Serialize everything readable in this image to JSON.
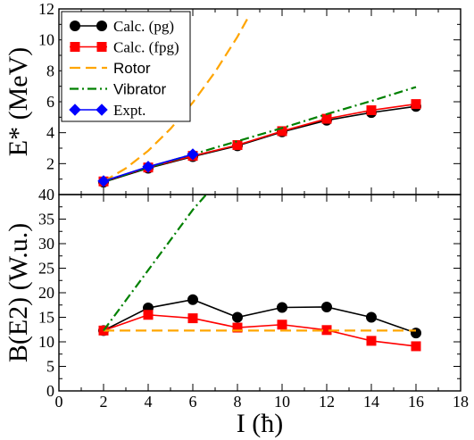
{
  "chart_data": [
    {
      "type": "line",
      "panel": "top",
      "ylabel": "E* (MeV)",
      "xlim": [
        0,
        18
      ],
      "ylim": [
        0,
        12
      ],
      "xticks": [
        0,
        2,
        4,
        6,
        8,
        10,
        12,
        14,
        16,
        18
      ],
      "yticks": [
        2,
        4,
        6,
        8,
        10,
        12
      ],
      "ytick_labels": [
        "2",
        "4",
        "6",
        "8",
        "10",
        "12"
      ],
      "legend": "top-left",
      "series": [
        {
          "name": "Calc. (pg)",
          "color": "#000000",
          "marker": "circle",
          "line": "solid",
          "x": [
            2,
            4,
            6,
            8,
            10,
            12,
            14,
            16
          ],
          "y": [
            0.8,
            1.7,
            2.45,
            3.15,
            4.05,
            4.8,
            5.3,
            5.7
          ]
        },
        {
          "name": "Calc. (fpg)",
          "color": "#ff0000",
          "marker": "square",
          "line": "solid",
          "x": [
            2,
            4,
            6,
            8,
            10,
            12,
            14,
            16
          ],
          "y": [
            0.85,
            1.75,
            2.5,
            3.2,
            4.1,
            4.9,
            5.45,
            5.85
          ]
        },
        {
          "name": "Rotor",
          "color": "#ffa500",
          "marker": "none",
          "line": "dashed",
          "x": [
            2,
            3,
            4,
            5,
            6,
            7,
            8,
            8.5
          ],
          "y": [
            0.85,
            1.7,
            2.83,
            4.25,
            5.95,
            7.93,
            10.2,
            11.5
          ]
        },
        {
          "name": "Vibrator",
          "color": "#008000",
          "marker": "none",
          "line": "dashdot",
          "x": [
            2,
            4,
            6,
            8,
            10,
            12,
            14,
            16
          ],
          "y": [
            0.85,
            1.75,
            2.6,
            3.45,
            4.3,
            5.2,
            6.05,
            6.95
          ]
        },
        {
          "name": "Expt.",
          "color": "#0000ff",
          "marker": "diamond",
          "line": "solid",
          "x": [
            2,
            4,
            6
          ],
          "y": [
            0.87,
            1.8,
            2.6
          ]
        }
      ]
    },
    {
      "type": "line",
      "panel": "bottom",
      "xlabel": "I (ħ)",
      "ylabel": "B(E2) (W.u.)",
      "xlim": [
        0,
        18
      ],
      "ylim": [
        0,
        40
      ],
      "xticks": [
        0,
        2,
        4,
        6,
        8,
        10,
        12,
        14,
        16,
        18
      ],
      "xtick_labels": [
        "0",
        "2",
        "4",
        "6",
        "8",
        "10",
        "12",
        "14",
        "16",
        "18"
      ],
      "yticks": [
        0,
        5,
        10,
        15,
        20,
        25,
        30,
        35,
        40
      ],
      "ytick_labels": [
        "0",
        "5",
        "10",
        "15",
        "20",
        "25",
        "30",
        "35",
        "40"
      ],
      "series": [
        {
          "name": "Calc. (pg)",
          "color": "#000000",
          "marker": "circle",
          "line": "solid",
          "x": [
            2,
            4,
            6,
            8,
            10,
            12,
            14,
            16
          ],
          "y": [
            12.3,
            16.9,
            18.6,
            15.0,
            17.0,
            17.1,
            15.0,
            11.8
          ]
        },
        {
          "name": "Calc. (fpg)",
          "color": "#ff0000",
          "marker": "square",
          "line": "solid",
          "x": [
            2,
            4,
            6,
            8,
            10,
            12,
            14,
            16
          ],
          "y": [
            12.3,
            15.5,
            14.8,
            12.9,
            13.5,
            12.4,
            10.2,
            9.1
          ]
        },
        {
          "name": "Rotor",
          "color": "#ffa500",
          "marker": "none",
          "line": "dashed",
          "x": [
            2,
            4,
            6,
            8,
            10,
            12,
            14,
            16
          ],
          "y": [
            12.3,
            12.3,
            12.3,
            12.3,
            12.3,
            12.3,
            12.3,
            12.3
          ]
        },
        {
          "name": "Vibrator",
          "color": "#008000",
          "marker": "none",
          "line": "dashdot",
          "x": [
            2,
            4,
            6,
            6.6
          ],
          "y": [
            12.3,
            24.6,
            36.9,
            40
          ]
        }
      ]
    }
  ]
}
